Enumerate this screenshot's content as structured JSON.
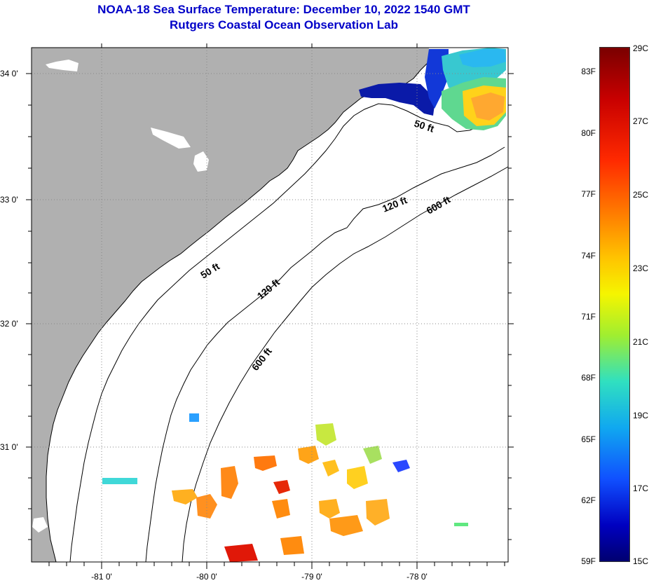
{
  "title": {
    "line1": "NOAA-18 Sea Surface Temperature:  December 10, 2022 1540 GMT",
    "line2": "Rutgers Coastal Ocean Observation Lab"
  },
  "map": {
    "x_ticks": [
      "-81 0'",
      "-80 0'",
      "-79 0'",
      "-78 0'"
    ],
    "y_ticks": [
      "34 0'",
      "33 0'",
      "32 0'",
      "31 0'"
    ],
    "isobaths": {
      "ft50_a": "50 ft",
      "ft50_b": "50 ft",
      "ft120_a": "120 ft",
      "ft120_b": "120 ft",
      "ft600_a": "600 ft",
      "ft600_b": "600 ft"
    },
    "colors": {
      "land": "#b0b0b0",
      "water": "#ffffff",
      "no_data": "#ffffff"
    }
  },
  "colorbar": {
    "fahrenheit": [
      "83F",
      "80F",
      "77F",
      "74F",
      "71F",
      "68F",
      "65F",
      "62F",
      "59F"
    ],
    "celsius": [
      "29C",
      "27C",
      "25C",
      "23C",
      "21C",
      "19C",
      "17C",
      "15C"
    ],
    "range_c": [
      15,
      29
    ],
    "range_f": [
      59,
      84.2
    ]
  }
}
